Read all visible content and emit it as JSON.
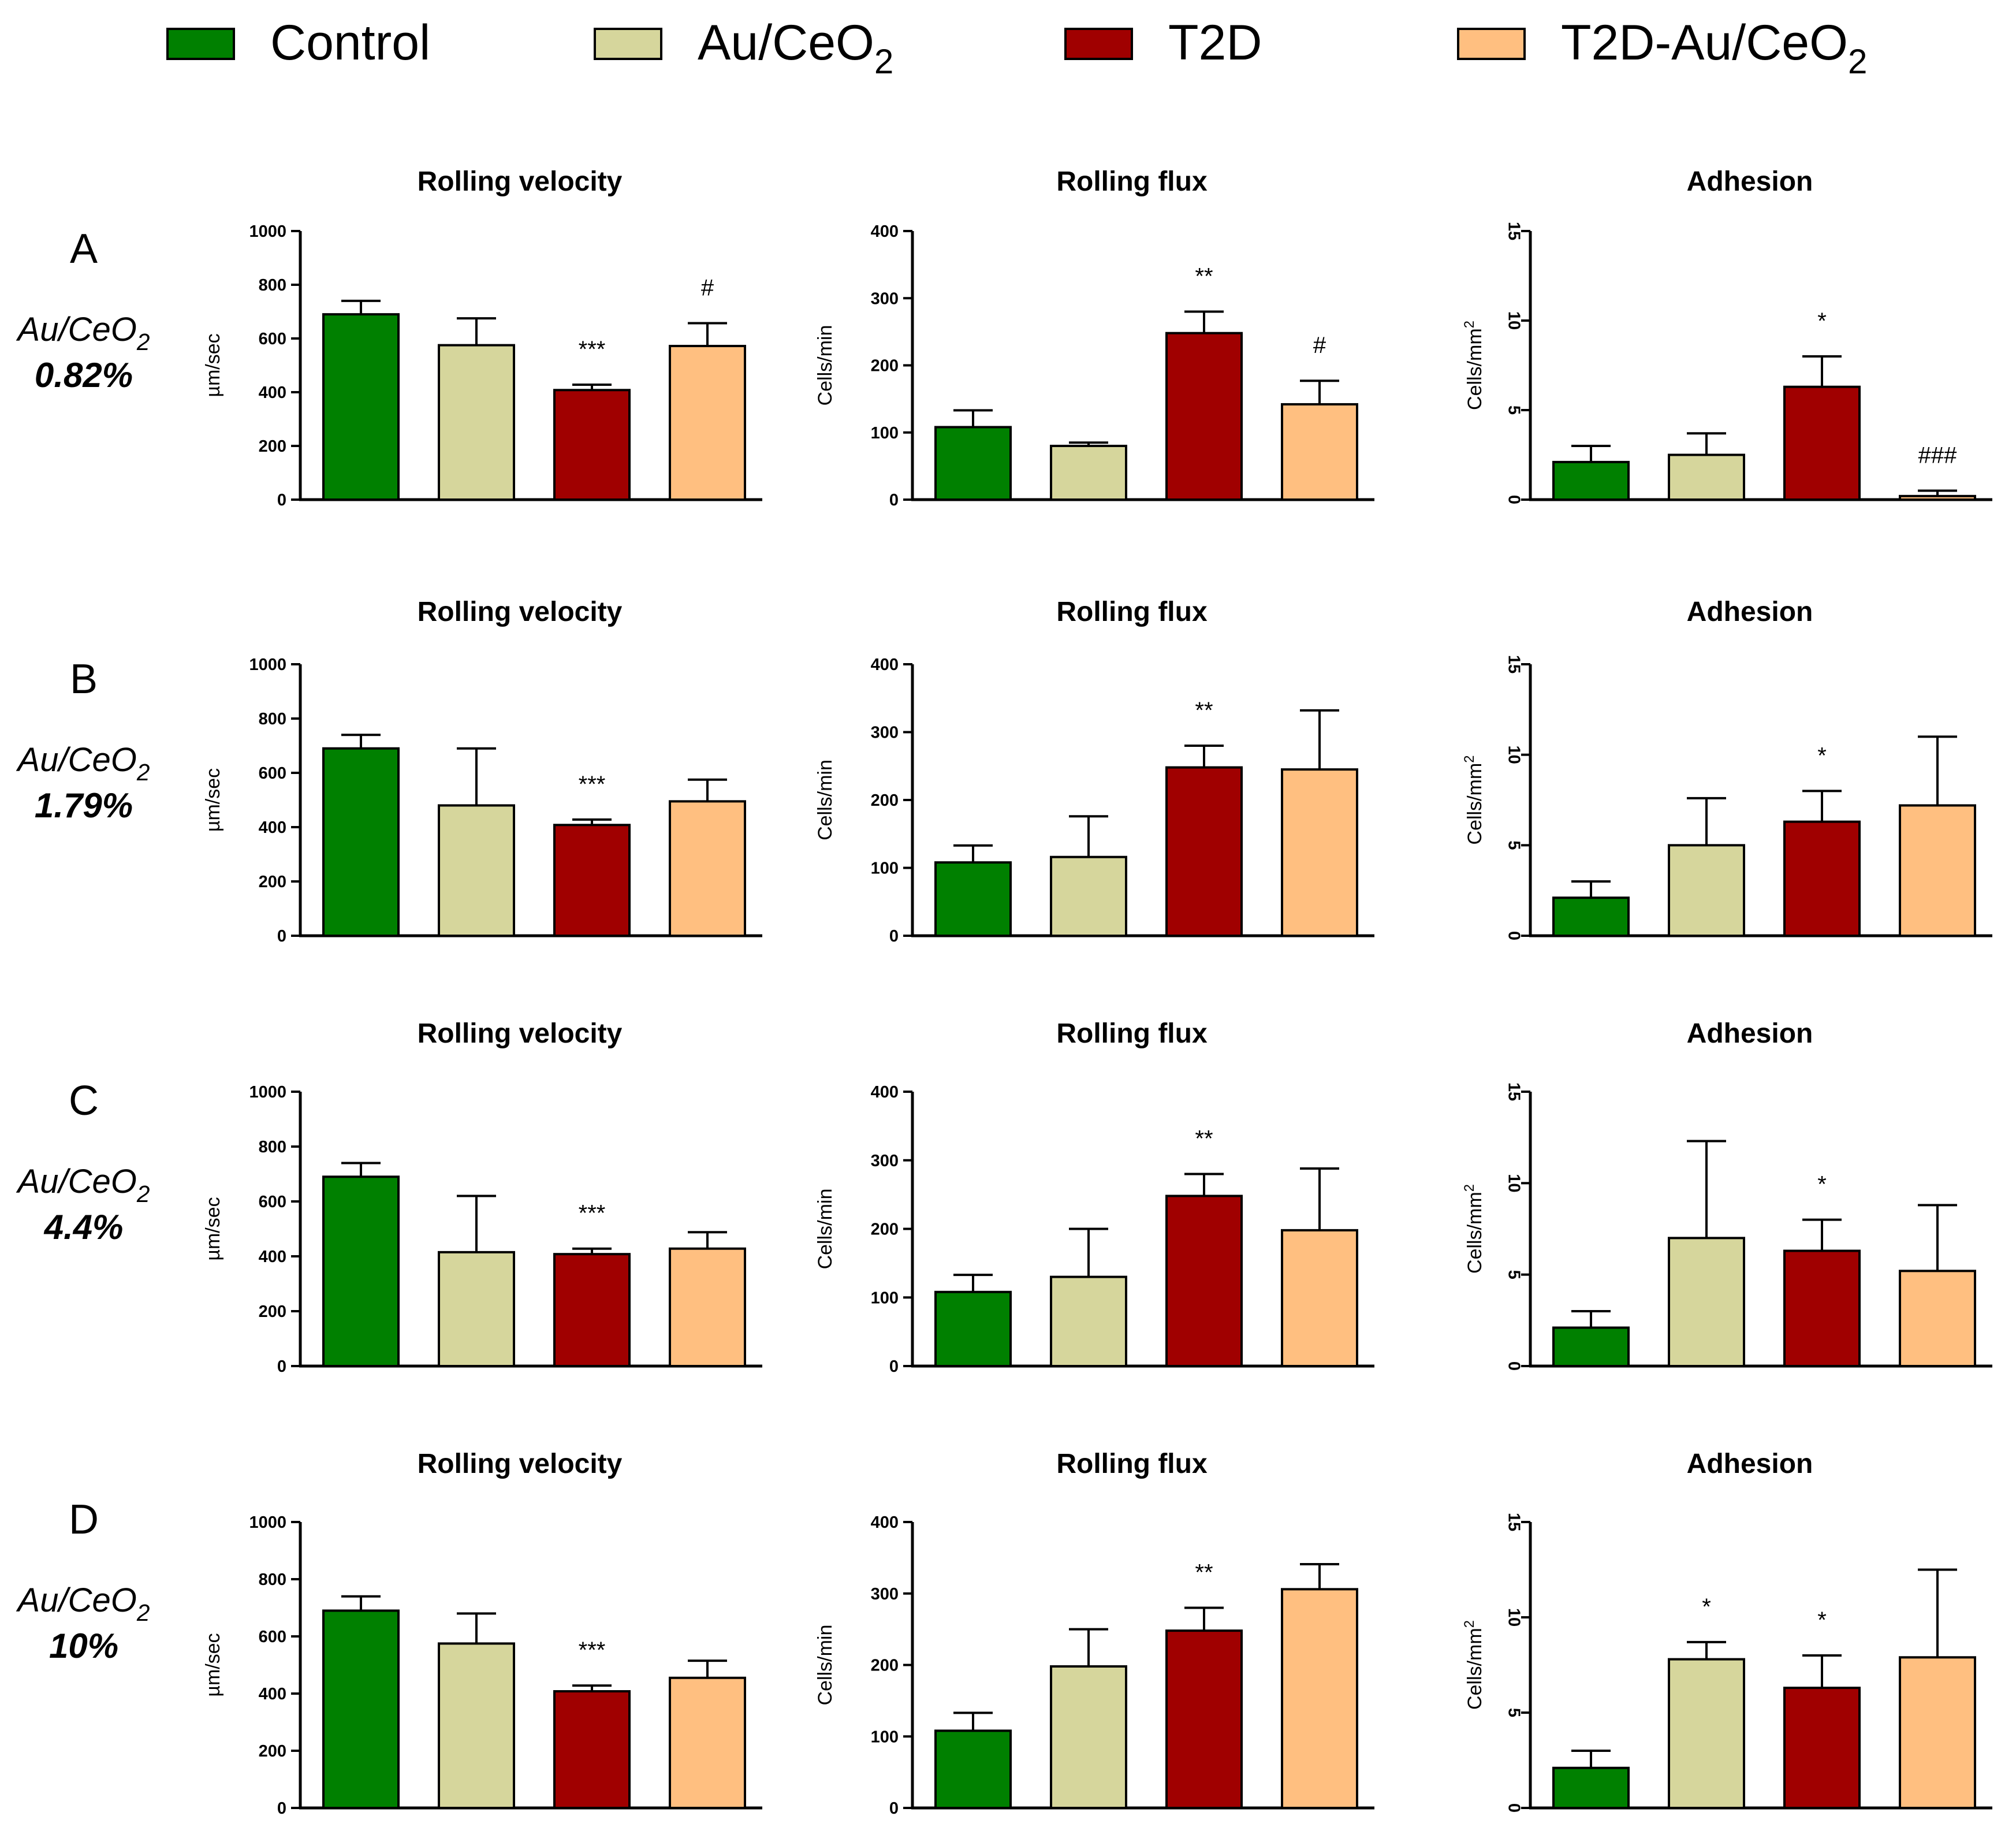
{
  "legend": [
    {
      "label": "Control",
      "color": "#008000"
    },
    {
      "label": "Au/CeO",
      "sub": "2",
      "color": "#d6d69c"
    },
    {
      "label": "T2D",
      "color": "#a00000"
    },
    {
      "label": "T2D-Au/CeO",
      "sub": "2",
      "color": "#ffbf80"
    }
  ],
  "rows": [
    {
      "letter": "A",
      "chem": "Au/CeO",
      "chem_sub": "2",
      "pct": "0.82%"
    },
    {
      "letter": "B",
      "chem": "Au/CeO",
      "chem_sub": "2",
      "pct": "1.79%"
    },
    {
      "letter": "C",
      "chem": "Au/CeO",
      "chem_sub": "2",
      "pct": "4.4%"
    },
    {
      "letter": "D",
      "chem": "Au/CeO",
      "chem_sub": "2",
      "pct": "10%"
    }
  ],
  "chart_data": [
    {
      "row": "A",
      "type": "bar",
      "title": "Rolling velocity",
      "ylabel": "µm/sec",
      "ylabel_sup": "",
      "ylim": [
        0,
        1000
      ],
      "ticks": [
        0,
        200,
        400,
        600,
        800,
        1000
      ],
      "tick_rotated": false,
      "categories": [
        "Control",
        "Au/CeO2",
        "T2D",
        "T2D-Au/CeO2"
      ],
      "values": [
        690,
        575,
        408,
        572
      ],
      "errors": [
        50,
        100,
        20,
        85
      ],
      "sig": [
        "",
        "",
        "***",
        "#"
      ]
    },
    {
      "row": "A",
      "type": "bar",
      "title": "Rolling flux",
      "ylabel": "Cells/min",
      "ylabel_sup": "",
      "ylim": [
        0,
        400
      ],
      "ticks": [
        0,
        100,
        200,
        300,
        400
      ],
      "tick_rotated": false,
      "categories": [
        "Control",
        "Au/CeO2",
        "T2D",
        "T2D-Au/CeO2"
      ],
      "values": [
        108,
        80,
        248,
        142
      ],
      "errors": [
        25,
        5,
        32,
        35
      ],
      "sig": [
        "",
        "",
        "**",
        "#"
      ]
    },
    {
      "row": "A",
      "type": "bar",
      "title": "Adhesion",
      "ylabel": "Cells/mm",
      "ylabel_sup": "2",
      "ylim": [
        0,
        15
      ],
      "ticks": [
        0,
        5,
        10,
        15
      ],
      "tick_rotated": true,
      "categories": [
        "Control",
        "Au/CeO2",
        "T2D",
        "T2D-Au/CeO2"
      ],
      "values": [
        2.1,
        2.5,
        6.3,
        0.2
      ],
      "errors": [
        0.9,
        1.2,
        1.7,
        0.3
      ],
      "sig": [
        "",
        "",
        "*",
        "###"
      ]
    },
    {
      "row": "B",
      "type": "bar",
      "title": "Rolling velocity",
      "ylabel": "µm/sec",
      "ylabel_sup": "",
      "ylim": [
        0,
        1000
      ],
      "ticks": [
        0,
        200,
        400,
        600,
        800,
        1000
      ],
      "tick_rotated": false,
      "categories": [
        "Control",
        "Au/CeO2",
        "T2D",
        "T2D-Au/CeO2"
      ],
      "values": [
        690,
        480,
        408,
        495
      ],
      "errors": [
        50,
        210,
        20,
        80
      ],
      "sig": [
        "",
        "",
        "***",
        ""
      ]
    },
    {
      "row": "B",
      "type": "bar",
      "title": "Rolling flux",
      "ylabel": "Cells/min",
      "ylabel_sup": "",
      "ylim": [
        0,
        400
      ],
      "ticks": [
        0,
        100,
        200,
        300,
        400
      ],
      "tick_rotated": false,
      "categories": [
        "Control",
        "Au/CeO2",
        "T2D",
        "T2D-Au/CeO2"
      ],
      "values": [
        108,
        116,
        248,
        245
      ],
      "errors": [
        25,
        60,
        32,
        87
      ],
      "sig": [
        "",
        "",
        "**",
        ""
      ]
    },
    {
      "row": "B",
      "type": "bar",
      "title": "Adhesion",
      "ylabel": "Cells/mm",
      "ylabel_sup": "2",
      "ylim": [
        0,
        15
      ],
      "ticks": [
        0,
        5,
        10,
        15
      ],
      "tick_rotated": true,
      "categories": [
        "Control",
        "Au/CeO2",
        "T2D",
        "T2D-Au/CeO2"
      ],
      "values": [
        2.1,
        5.0,
        6.3,
        7.2
      ],
      "errors": [
        0.9,
        2.6,
        1.7,
        3.8
      ],
      "sig": [
        "",
        "",
        "*",
        ""
      ]
    },
    {
      "row": "C",
      "type": "bar",
      "title": "Rolling velocity",
      "ylabel": "µm/sec",
      "ylabel_sup": "",
      "ylim": [
        0,
        1000
      ],
      "ticks": [
        0,
        200,
        400,
        600,
        800,
        1000
      ],
      "tick_rotated": false,
      "categories": [
        "Control",
        "Au/CeO2",
        "T2D",
        "T2D-Au/CeO2"
      ],
      "values": [
        690,
        415,
        408,
        428
      ],
      "errors": [
        50,
        205,
        20,
        60
      ],
      "sig": [
        "",
        "",
        "***",
        ""
      ]
    },
    {
      "row": "C",
      "type": "bar",
      "title": "Rolling flux",
      "ylabel": "Cells/min",
      "ylabel_sup": "",
      "ylim": [
        0,
        400
      ],
      "ticks": [
        0,
        100,
        200,
        300,
        400
      ],
      "tick_rotated": false,
      "categories": [
        "Control",
        "Au/CeO2",
        "T2D",
        "T2D-Au/CeO2"
      ],
      "values": [
        108,
        130,
        248,
        198
      ],
      "errors": [
        25,
        70,
        32,
        90
      ],
      "sig": [
        "",
        "",
        "**",
        ""
      ]
    },
    {
      "row": "C",
      "type": "bar",
      "title": "Adhesion",
      "ylabel": "Cells/mm",
      "ylabel_sup": "2",
      "ylim": [
        0,
        15
      ],
      "ticks": [
        0,
        5,
        10,
        15
      ],
      "tick_rotated": true,
      "categories": [
        "Control",
        "Au/CeO2",
        "T2D",
        "T2D-Au/CeO2"
      ],
      "values": [
        2.1,
        7.0,
        6.3,
        5.2
      ],
      "errors": [
        0.9,
        5.3,
        1.7,
        3.6
      ],
      "sig": [
        "",
        "",
        "*",
        ""
      ]
    },
    {
      "row": "D",
      "type": "bar",
      "title": "Rolling velocity",
      "ylabel": "µm/sec",
      "ylabel_sup": "",
      "ylim": [
        0,
        1000
      ],
      "ticks": [
        0,
        200,
        400,
        600,
        800,
        1000
      ],
      "tick_rotated": false,
      "categories": [
        "Control",
        "Au/CeO2",
        "T2D",
        "T2D-Au/CeO2"
      ],
      "values": [
        690,
        575,
        408,
        455
      ],
      "errors": [
        50,
        105,
        20,
        60
      ],
      "sig": [
        "",
        "",
        "***",
        ""
      ]
    },
    {
      "row": "D",
      "type": "bar",
      "title": "Rolling flux",
      "ylabel": "Cells/min",
      "ylabel_sup": "",
      "ylim": [
        0,
        400
      ],
      "ticks": [
        0,
        100,
        200,
        300,
        400
      ],
      "tick_rotated": false,
      "categories": [
        "Control",
        "Au/CeO2",
        "T2D",
        "T2D-Au/CeO2"
      ],
      "values": [
        108,
        198,
        248,
        306
      ],
      "errors": [
        25,
        52,
        32,
        35
      ],
      "sig": [
        "",
        "",
        "**",
        ""
      ]
    },
    {
      "row": "D",
      "type": "bar",
      "title": "Adhesion",
      "ylabel": "Cells/mm",
      "ylabel_sup": "2",
      "ylim": [
        0,
        15
      ],
      "ticks": [
        0,
        5,
        10,
        15
      ],
      "tick_rotated": true,
      "categories": [
        "Control",
        "Au/CeO2",
        "T2D",
        "T2D-Au/CeO2"
      ],
      "values": [
        2.1,
        7.8,
        6.3,
        7.9
      ],
      "errors": [
        0.9,
        0.9,
        1.7,
        4.6
      ],
      "sig": [
        "",
        "*",
        "*",
        ""
      ]
    }
  ]
}
